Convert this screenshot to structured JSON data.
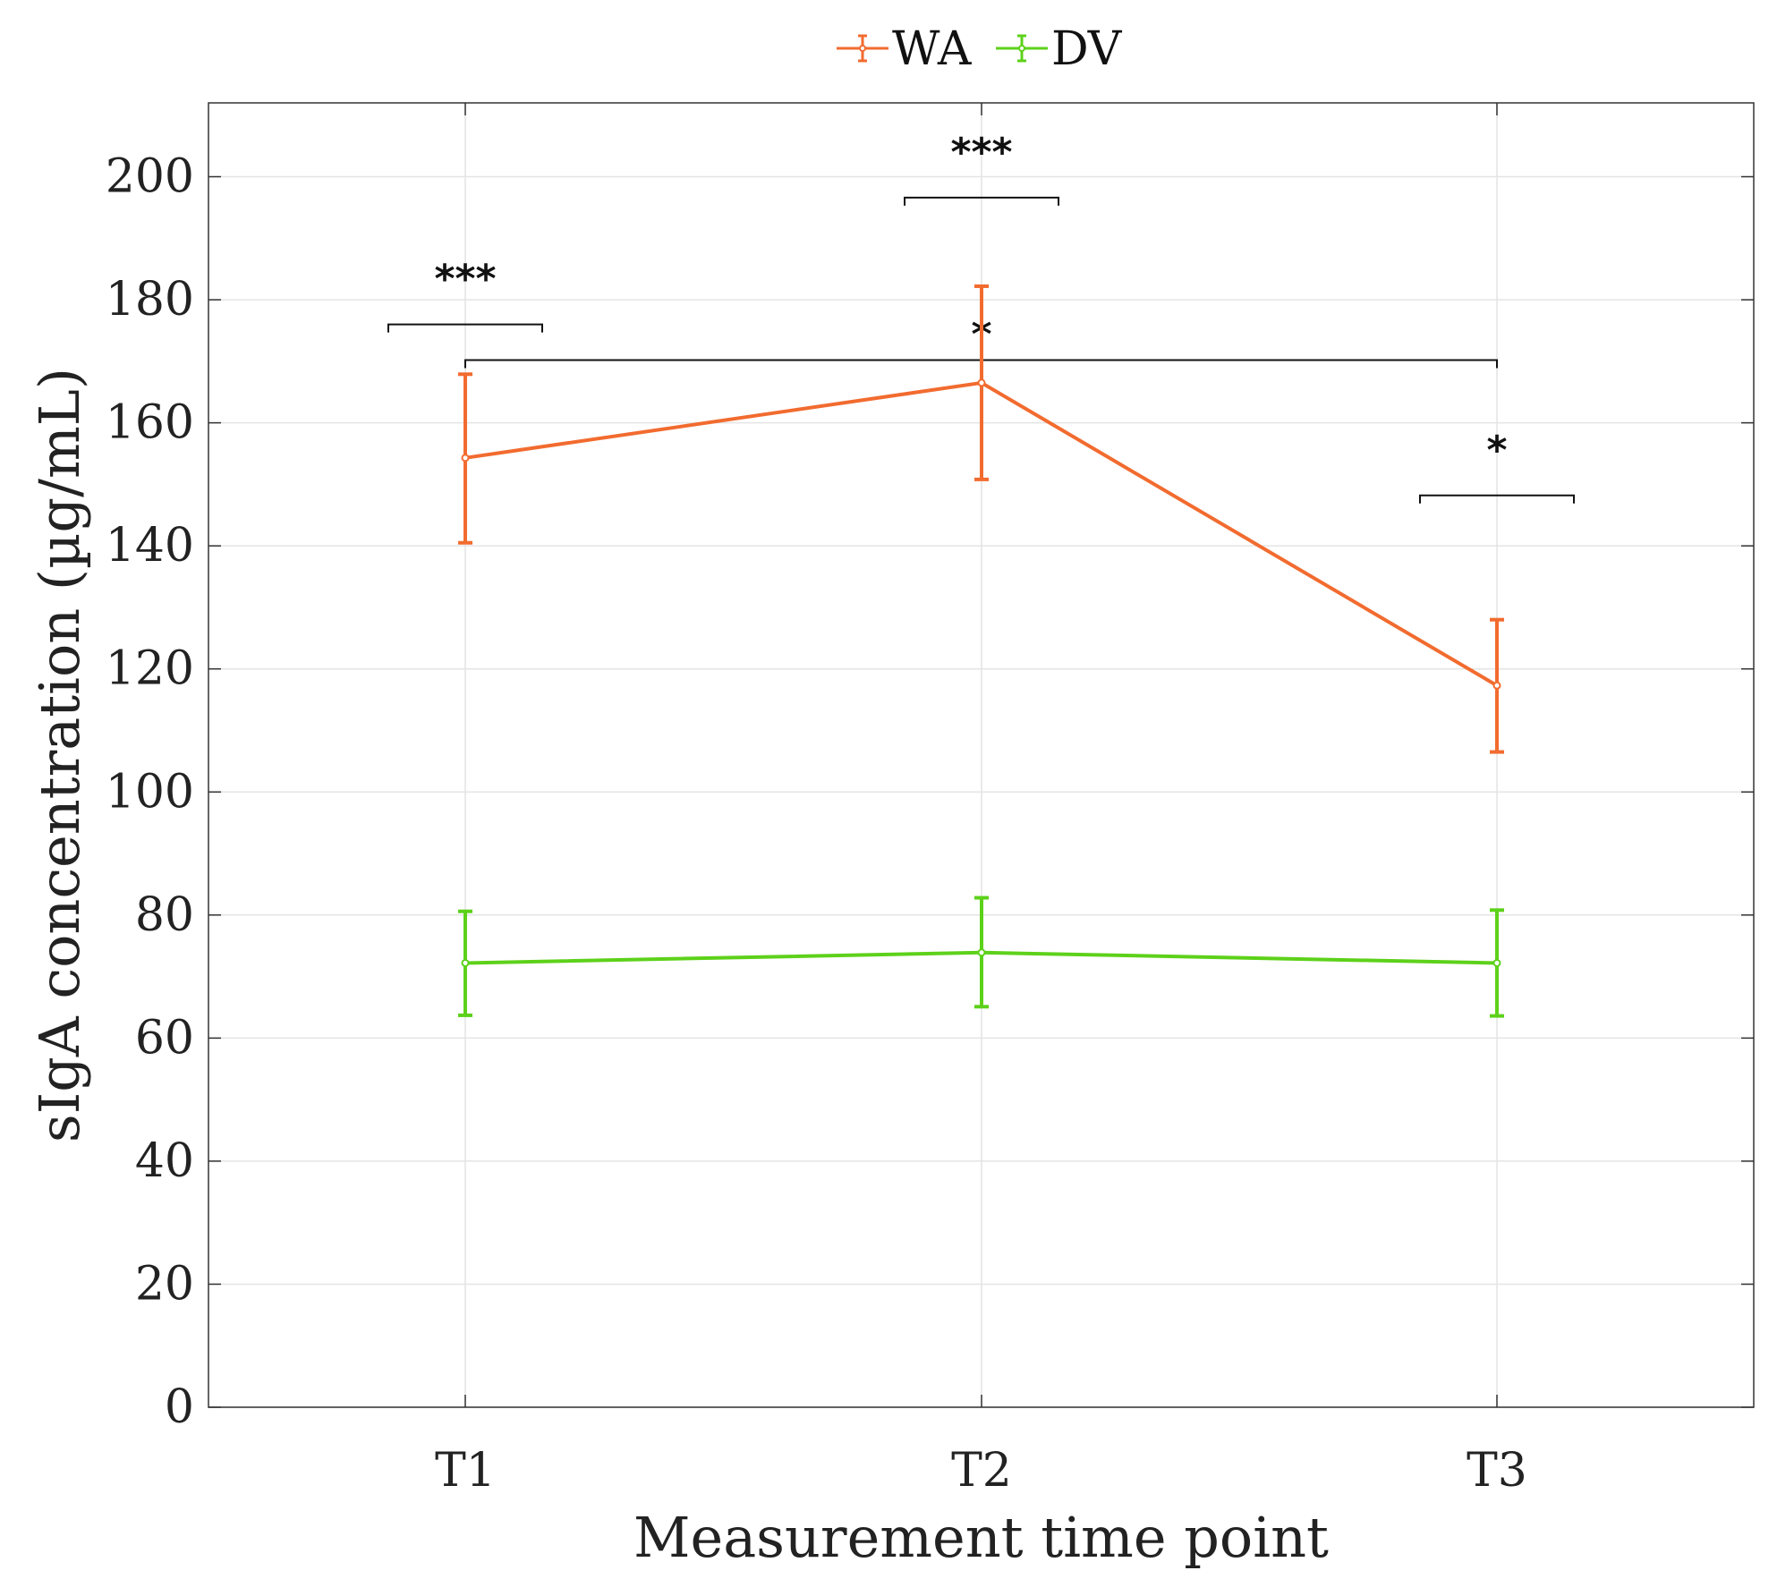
{
  "chart_data": {
    "type": "line",
    "title": "",
    "xlabel": "Measurement time point",
    "ylabel": "sIgA concentration (µg/mL)",
    "categories": [
      "T1",
      "T2",
      "T3"
    ],
    "ylim": [
      0,
      212
    ],
    "yticks": [
      0,
      20,
      40,
      60,
      80,
      100,
      120,
      140,
      160,
      180,
      200
    ],
    "grid": true,
    "legend_placement": "top-center",
    "series": [
      {
        "name": "WA",
        "color": "#f26b2f",
        "values": [
          154.3,
          166.5,
          117.3
        ],
        "error_low": [
          140.5,
          150.8,
          106.5
        ],
        "error_high": [
          167.9,
          182.2,
          128.0
        ]
      },
      {
        "name": "DV",
        "color": "#5dd11a",
        "values": [
          72.2,
          73.9,
          72.2
        ],
        "error_low": [
          63.7,
          65.1,
          63.6
        ],
        "error_high": [
          80.6,
          82.8,
          80.8
        ]
      }
    ],
    "annotations": [
      {
        "label": "***",
        "x": "T1",
        "y": 176.0
      },
      {
        "label": "***",
        "x": "T2",
        "y": 196.6
      },
      {
        "label": "*",
        "x": "T3",
        "y": 148.2
      },
      {
        "label": "*",
        "from": "T1",
        "to": "T3",
        "y": 170.2
      }
    ]
  }
}
